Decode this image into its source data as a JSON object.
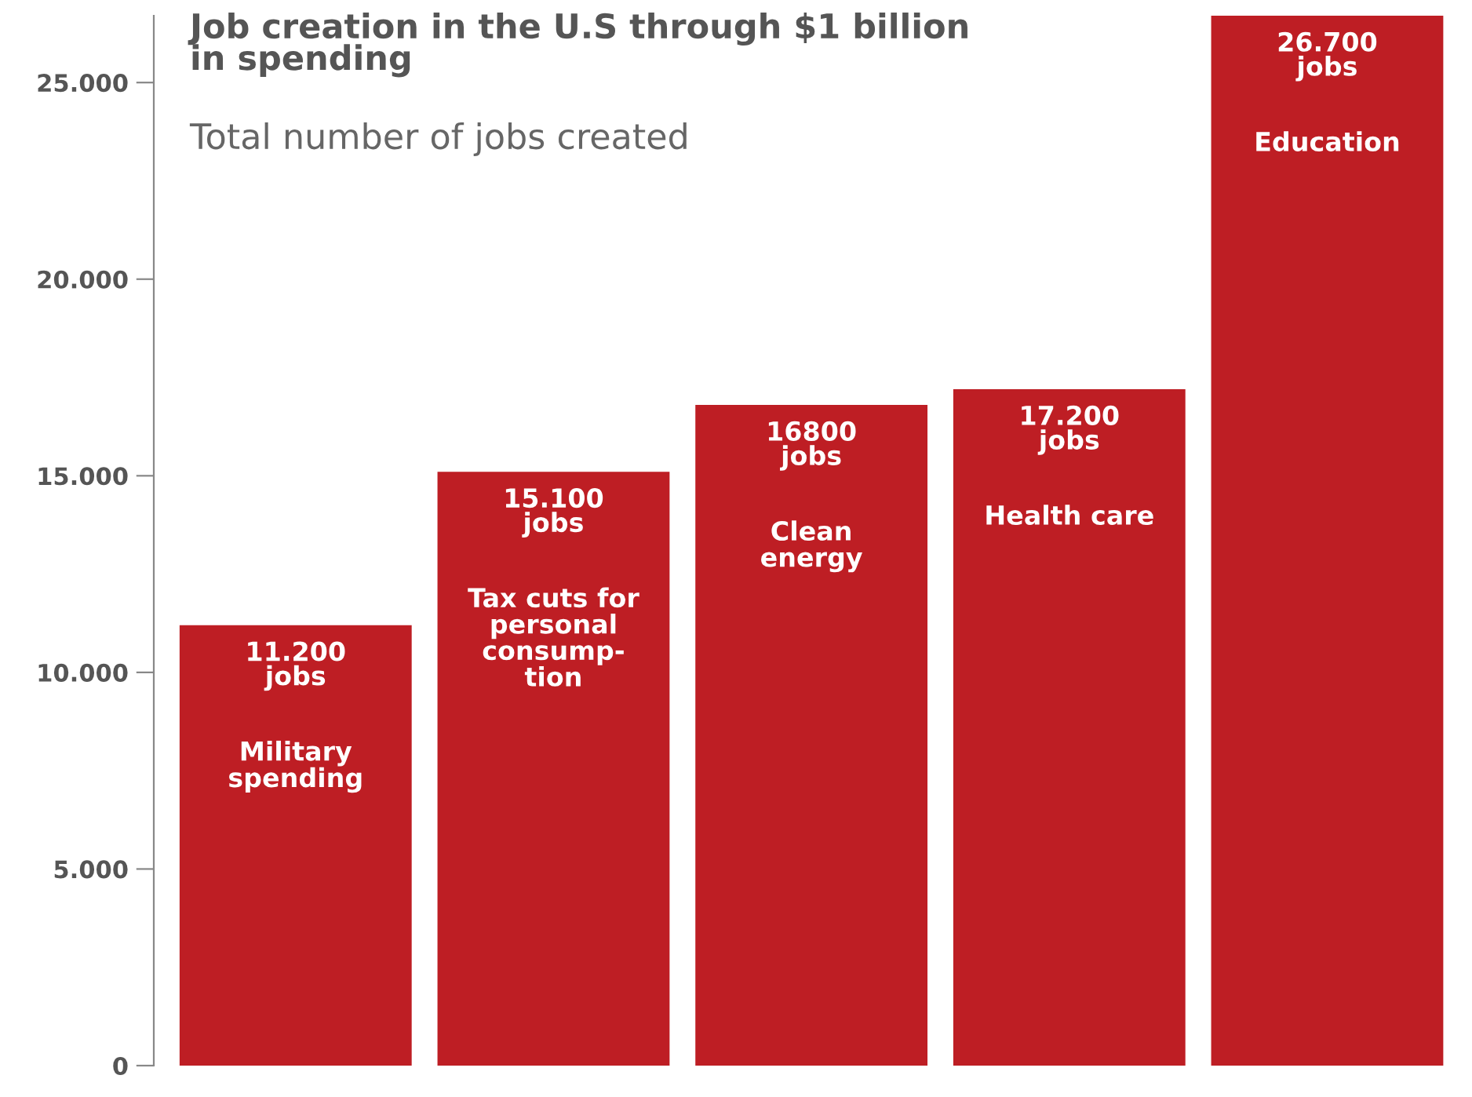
{
  "chart_data": {
    "type": "bar",
    "title": "Job creation in the U.S through $1 billion\nin spending",
    "subtitle": "Total number of jobs created",
    "categories": [
      "Military\nspending",
      "Tax cuts for\npersonal\nconsump-\ntion",
      "Clean\nenergy",
      "Health care",
      "Education"
    ],
    "values": [
      11200,
      15100,
      16800,
      17200,
      26700
    ],
    "value_labels": [
      "11.200\njobs",
      "15.100\njobs",
      "16800\njobs",
      "17.200\njobs",
      "26.700\njobs"
    ],
    "color": "#be1e24",
    "ylim": [
      0,
      26700
    ],
    "yticks": [
      0,
      {
        "value": 5000,
        "label": "5.000"
      },
      {
        "value": 10000,
        "label": "10.000"
      },
      {
        "value": 15000,
        "label": "15.000"
      },
      {
        "value": 20000,
        "label": "20.000"
      },
      {
        "value": 25000,
        "label": "25.000"
      }
    ],
    "grid": false
  }
}
